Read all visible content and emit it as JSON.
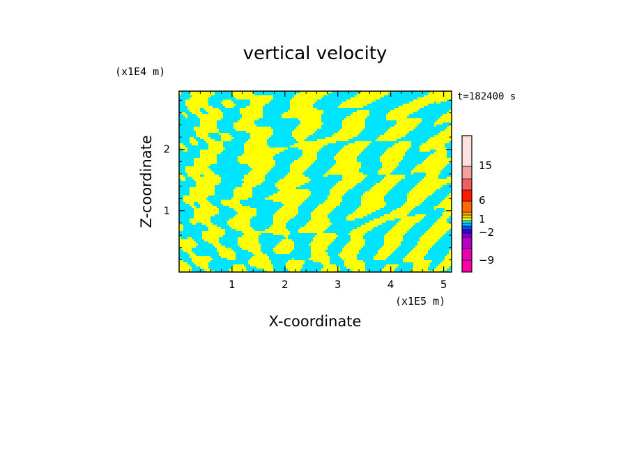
{
  "chart_data": {
    "type": "heatmap",
    "title": "vertical velocity",
    "xlabel": "X-coordinate",
    "ylabel": "Z-coordinate",
    "x_unit": "(x1E5 m)",
    "y_unit": "(x1E4 m)",
    "time_label": "t=182400 s",
    "xlim": [
      0,
      5.15
    ],
    "ylim": [
      0,
      2.95
    ],
    "x_ticks": [
      1,
      2,
      3,
      4,
      5
    ],
    "y_ticks": [
      1,
      2
    ],
    "x_tick_labels": [
      "1",
      "2",
      "3",
      "4",
      "5"
    ],
    "y_tick_labels": [
      "1",
      "2"
    ],
    "field_colors": {
      "positive": "#ffff00",
      "negative": "#00e5ff"
    },
    "colorbar": {
      "levels": [
        {
          "color": "#ff00aa"
        },
        {
          "color": "#e600b4"
        },
        {
          "color": "#b400c8"
        },
        {
          "color": "#7800d2"
        },
        {
          "color": "#3c00dc"
        },
        {
          "color": "#0050ff"
        },
        {
          "color": "#00b4ff"
        },
        {
          "color": "#00e5ff"
        },
        {
          "color": "#ffff00"
        },
        {
          "color": "#ffd000"
        },
        {
          "color": "#ffa500"
        },
        {
          "color": "#ff6a00"
        },
        {
          "color": "#ff1a00"
        },
        {
          "color": "#f06060"
        },
        {
          "color": "#f5a0a0"
        },
        {
          "color": "#fde0e0"
        }
      ],
      "labels": [
        "15",
        "6",
        "1",
        "−2",
        "−9"
      ]
    }
  }
}
